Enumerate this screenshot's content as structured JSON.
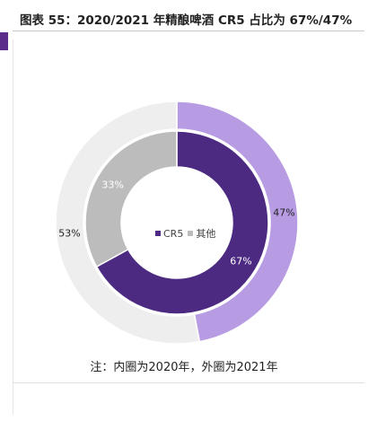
{
  "header": {
    "title": "图表 55：2020/2021 年精酿啤酒 CR5 占比为 67%/47%"
  },
  "chart_data": {
    "type": "pie",
    "subtype": "nested-donut",
    "rings": [
      {
        "ring": "inner",
        "year": "2020年",
        "slices": [
          {
            "name": "CR5",
            "value": 67,
            "label": "67%",
            "color": "#4d2a82"
          },
          {
            "name": "其他",
            "value": 33,
            "label": "33%",
            "color": "#bcbcbc"
          }
        ]
      },
      {
        "ring": "outer",
        "year": "2021年",
        "slices": [
          {
            "name": "CR5",
            "value": 47,
            "label": "47%",
            "color": "#b79be3"
          },
          {
            "name": "其他",
            "value": 53,
            "label": "53%",
            "color": "#eeeeee"
          }
        ]
      }
    ],
    "legend": [
      {
        "name": "CR5",
        "color": "#4d2a82"
      },
      {
        "name": "其他",
        "color": "#bcbcbc"
      }
    ],
    "legend_position": "center"
  },
  "note": "注：内圈为2020年，外圈为2021年"
}
